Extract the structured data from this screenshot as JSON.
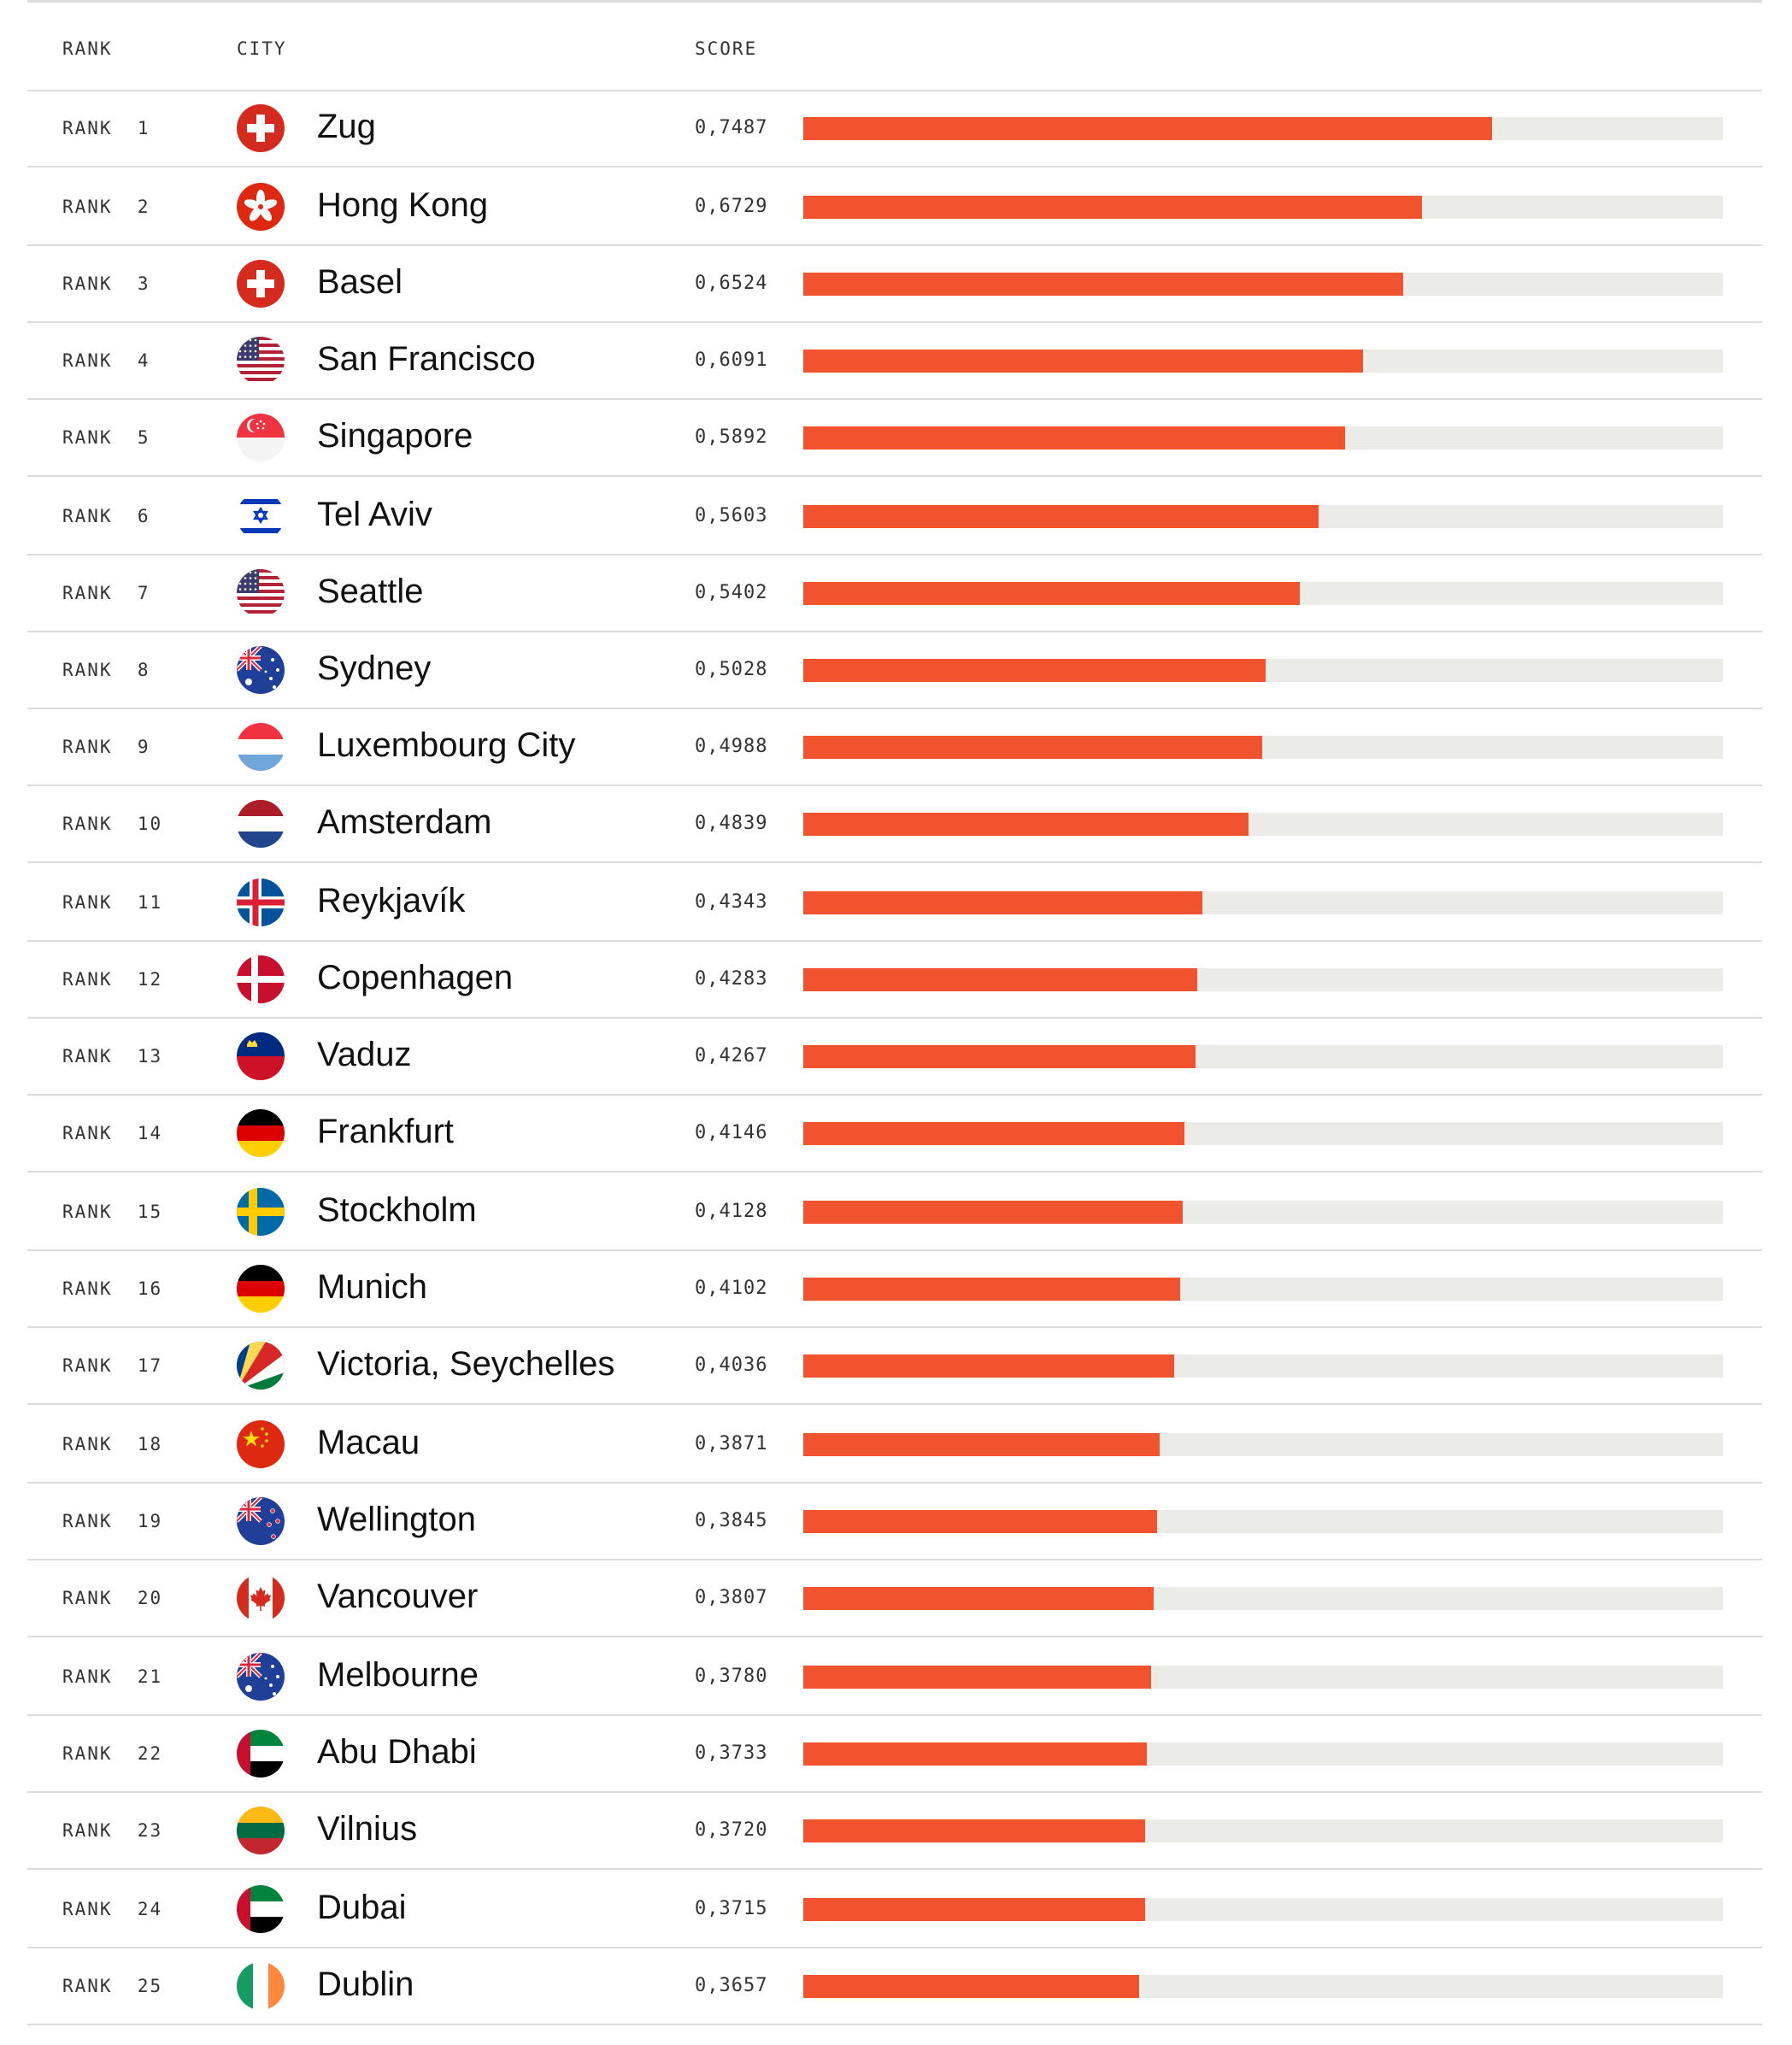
{
  "header": {
    "rank": "RANK",
    "city": "CITY",
    "score": "SCORE"
  },
  "colors": {
    "bar": "#f0532d",
    "track": "#ebebe8",
    "divider": "#dcdcdc"
  },
  "chart_data": {
    "type": "bar",
    "orientation": "horizontal",
    "xlim": [
      0,
      1.0
    ],
    "categories": [
      "Zug",
      "Hong Kong",
      "Basel",
      "San Francisco",
      "Singapore",
      "Tel Aviv",
      "Seattle",
      "Sydney",
      "Luxembourg City",
      "Amsterdam",
      "Reykjavík",
      "Copenhagen",
      "Vaduz",
      "Frankfurt",
      "Stockholm",
      "Munich",
      "Victoria, Seychelles",
      "Macau",
      "Wellington",
      "Vancouver",
      "Melbourne",
      "Abu Dhabi",
      "Vilnius",
      "Dubai",
      "Dublin"
    ],
    "values": [
      0.7487,
      0.6729,
      0.6524,
      0.6091,
      0.5892,
      0.5603,
      0.5402,
      0.5028,
      0.4988,
      0.4839,
      0.4343,
      0.4283,
      0.4267,
      0.4146,
      0.4128,
      0.4102,
      0.4036,
      0.3871,
      0.3845,
      0.3807,
      0.378,
      0.3733,
      0.372,
      0.3715,
      0.3657
    ]
  },
  "rows": [
    {
      "rank": "RANK  1",
      "city": "Zug",
      "score": "0,7487",
      "flag": "switzerland-flag-icon"
    },
    {
      "rank": "RANK  2",
      "city": "Hong Kong",
      "score": "0,6729",
      "flag": "hong-kong-flag-icon"
    },
    {
      "rank": "RANK  3",
      "city": "Basel",
      "score": "0,6524",
      "flag": "switzerland-flag-icon"
    },
    {
      "rank": "RANK  4",
      "city": "San Francisco",
      "score": "0,6091",
      "flag": "usa-flag-icon"
    },
    {
      "rank": "RANK  5",
      "city": "Singapore",
      "score": "0,5892",
      "flag": "singapore-flag-icon"
    },
    {
      "rank": "RANK  6",
      "city": "Tel Aviv",
      "score": "0,5603",
      "flag": "israel-flag-icon"
    },
    {
      "rank": "RANK  7",
      "city": "Seattle",
      "score": "0,5402",
      "flag": "usa-flag-icon"
    },
    {
      "rank": "RANK  8",
      "city": "Sydney",
      "score": "0,5028",
      "flag": "australia-flag-icon"
    },
    {
      "rank": "RANK  9",
      "city": "Luxembourg City",
      "score": "0,4988",
      "flag": "luxembourg-flag-icon"
    },
    {
      "rank": "RANK  10",
      "city": "Amsterdam",
      "score": "0,4839",
      "flag": "netherlands-flag-icon"
    },
    {
      "rank": "RANK  11",
      "city": "Reykjavík",
      "score": "0,4343",
      "flag": "iceland-flag-icon"
    },
    {
      "rank": "RANK  12",
      "city": "Copenhagen",
      "score": "0,4283",
      "flag": "denmark-flag-icon"
    },
    {
      "rank": "RANK  13",
      "city": "Vaduz",
      "score": "0,4267",
      "flag": "liechtenstein-flag-icon"
    },
    {
      "rank": "RANK  14",
      "city": "Frankfurt",
      "score": "0,4146",
      "flag": "germany-flag-icon"
    },
    {
      "rank": "RANK  15",
      "city": "Stockholm",
      "score": "0,4128",
      "flag": "sweden-flag-icon"
    },
    {
      "rank": "RANK  16",
      "city": "Munich",
      "score": "0,4102",
      "flag": "germany-flag-icon"
    },
    {
      "rank": "RANK  17",
      "city": "Victoria, Seychelles",
      "score": "0,4036",
      "flag": "seychelles-flag-icon"
    },
    {
      "rank": "RANK  18",
      "city": "Macau",
      "score": "0,3871",
      "flag": "china-flag-icon"
    },
    {
      "rank": "RANK  19",
      "city": "Wellington",
      "score": "0,3845",
      "flag": "new-zealand-flag-icon"
    },
    {
      "rank": "RANK  20",
      "city": "Vancouver",
      "score": "0,3807",
      "flag": "canada-flag-icon"
    },
    {
      "rank": "RANK  21",
      "city": "Melbourne",
      "score": "0,3780",
      "flag": "australia-flag-icon"
    },
    {
      "rank": "RANK  22",
      "city": "Abu Dhabi",
      "score": "0,3733",
      "flag": "uae-flag-icon"
    },
    {
      "rank": "RANK  23",
      "city": "Vilnius",
      "score": "0,3720",
      "flag": "lithuania-flag-icon"
    },
    {
      "rank": "RANK  24",
      "city": "Dubai",
      "score": "0,3715",
      "flag": "uae-flag-icon"
    },
    {
      "rank": "RANK  25",
      "city": "Dublin",
      "score": "0,3657",
      "flag": "ireland-flag-icon"
    }
  ]
}
